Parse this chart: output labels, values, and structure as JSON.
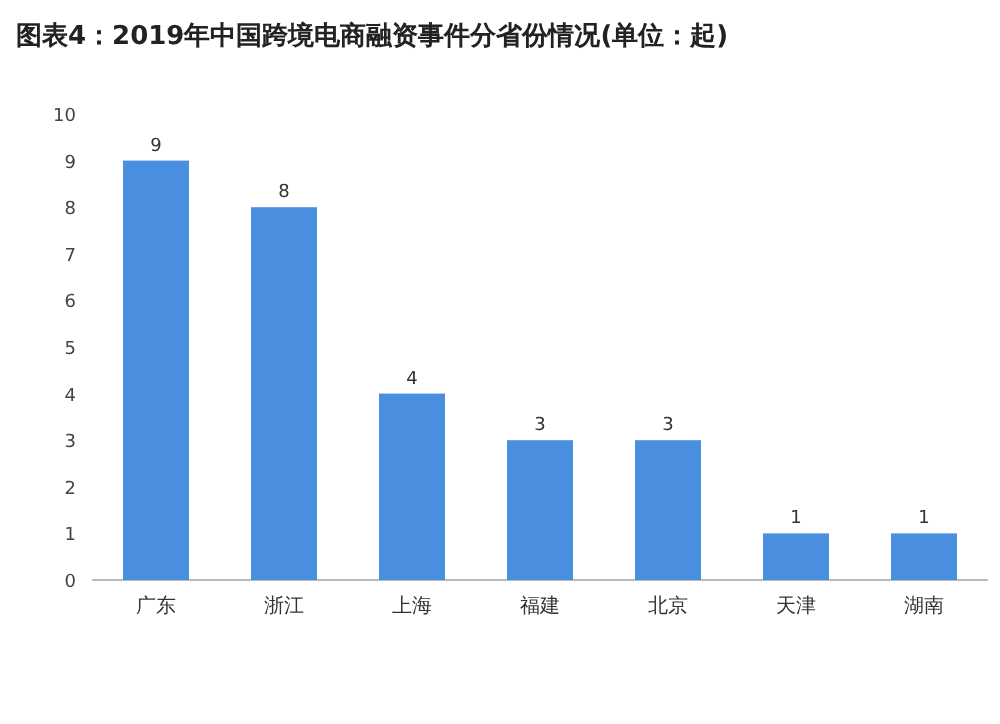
{
  "chart_data": {
    "type": "bar",
    "title": "图表4：2019年中国跨境电商融资事件分省份情况(单位：起)",
    "categories": [
      "广东",
      "浙江",
      "上海",
      "福建",
      "北京",
      "天津",
      "湖南"
    ],
    "values": [
      9,
      8,
      4,
      3,
      3,
      1,
      1
    ],
    "color": "#4a8ee0",
    "ylim": [
      0,
      10
    ],
    "yticks": [
      0,
      1,
      2,
      3,
      4,
      5,
      6,
      7,
      8,
      9,
      10
    ],
    "data_labels": true
  }
}
